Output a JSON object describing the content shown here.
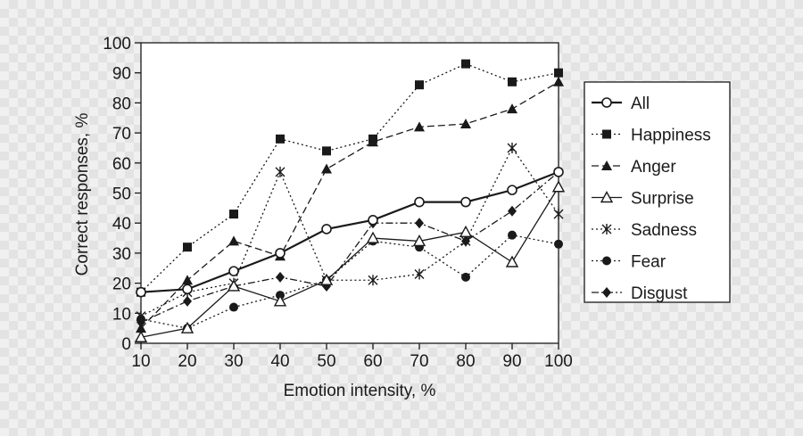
{
  "chart_data": {
    "type": "line",
    "title": "",
    "xlabel": "Emotion intensity, %",
    "ylabel": "Correct responses, %",
    "xlim": [
      10,
      100
    ],
    "ylim": [
      0,
      100
    ],
    "x": [
      10,
      20,
      30,
      40,
      50,
      60,
      70,
      80,
      90,
      100
    ],
    "xticks": [
      "10",
      "20",
      "30",
      "40",
      "50",
      "60",
      "70",
      "80",
      "90",
      "100"
    ],
    "yticks": [
      "0",
      "10",
      "20",
      "30",
      "40",
      "50",
      "60",
      "70",
      "80",
      "90",
      "100"
    ],
    "grid": false,
    "legend_position": "right",
    "series": [
      {
        "name": "All",
        "marker": "open-circle",
        "line": "solid-thick",
        "values": [
          17,
          18,
          24,
          30,
          38,
          41,
          47,
          47,
          51,
          57
        ]
      },
      {
        "name": "Happiness",
        "marker": "filled-square",
        "line": "dotted",
        "values": [
          17,
          32,
          43,
          68,
          64,
          68,
          86,
          93,
          87,
          90
        ]
      },
      {
        "name": "Anger",
        "marker": "filled-triangle",
        "line": "dashed",
        "values": [
          5,
          21,
          34,
          29,
          58,
          67,
          72,
          73,
          78,
          87
        ]
      },
      {
        "name": "Surprise",
        "marker": "open-triangle",
        "line": "solid-thin",
        "values": [
          2,
          5,
          19,
          14,
          21,
          35,
          34,
          37,
          27,
          52
        ]
      },
      {
        "name": "Sadness",
        "marker": "asterisk",
        "line": "dotted",
        "values": [
          9,
          17,
          20,
          57,
          21,
          21,
          23,
          34,
          65,
          43
        ]
      },
      {
        "name": "Fear",
        "marker": "filled-circle",
        "line": "dotted",
        "values": [
          8,
          5,
          12,
          16,
          21,
          34,
          32,
          22,
          36,
          33
        ]
      },
      {
        "name": "Disgust",
        "marker": "filled-diamond",
        "line": "dash-dot",
        "values": [
          7,
          14,
          19,
          22,
          19,
          40,
          40,
          34,
          44,
          57
        ]
      }
    ]
  }
}
